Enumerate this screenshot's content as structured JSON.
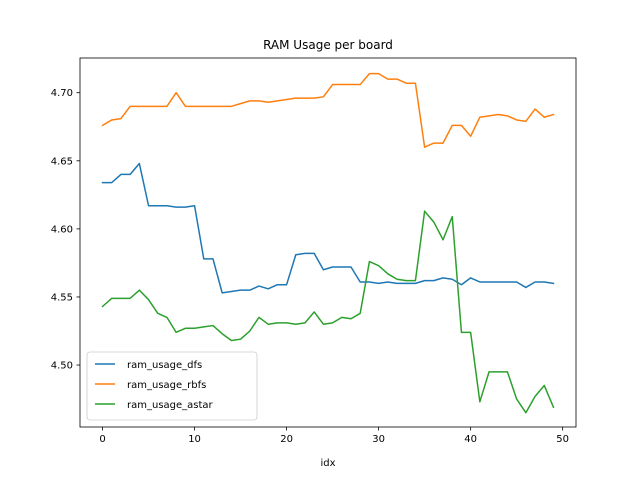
{
  "chart_data": {
    "type": "line",
    "title": "RAM Usage per board",
    "xlabel": "idx",
    "ylabel": "",
    "xlim": [
      -2.45,
      51.45
    ],
    "ylim": [
      4.4545,
      4.7255
    ],
    "xticks": [
      0,
      10,
      20,
      30,
      40,
      50
    ],
    "yticks": [
      4.5,
      4.55,
      4.6,
      4.65,
      4.7
    ],
    "ytick_labels": [
      "4.50",
      "4.55",
      "4.60",
      "4.65",
      "4.70"
    ],
    "grid": false,
    "legend_position": "lower-left",
    "x": [
      0,
      1,
      2,
      3,
      4,
      5,
      6,
      7,
      8,
      9,
      10,
      11,
      12,
      13,
      14,
      15,
      16,
      17,
      18,
      19,
      20,
      21,
      22,
      23,
      24,
      25,
      26,
      27,
      28,
      29,
      30,
      31,
      32,
      33,
      34,
      35,
      36,
      37,
      38,
      39,
      40,
      41,
      42,
      43,
      44,
      45,
      46,
      47,
      48,
      49
    ],
    "series": [
      {
        "name": "ram_usage_dfs",
        "color": "#1f77b4",
        "values": [
          4.634,
          4.634,
          4.64,
          4.64,
          4.648,
          4.617,
          4.617,
          4.617,
          4.616,
          4.616,
          4.617,
          4.578,
          4.578,
          4.553,
          4.554,
          4.555,
          4.555,
          4.558,
          4.556,
          4.559,
          4.559,
          4.581,
          4.582,
          4.582,
          4.57,
          4.572,
          4.572,
          4.572,
          4.561,
          4.561,
          4.56,
          4.561,
          4.56,
          4.56,
          4.56,
          4.562,
          4.562,
          4.564,
          4.563,
          4.559,
          4.564,
          4.561,
          4.561,
          4.561,
          4.561,
          4.561,
          4.557,
          4.561,
          4.561,
          4.56
        ]
      },
      {
        "name": "ram_usage_rbfs",
        "color": "#ff7f0e",
        "values": [
          4.676,
          4.68,
          4.681,
          4.69,
          4.69,
          4.69,
          4.69,
          4.69,
          4.7,
          4.69,
          4.69,
          4.69,
          4.69,
          4.69,
          4.69,
          4.692,
          4.694,
          4.694,
          4.693,
          4.694,
          4.695,
          4.696,
          4.696,
          4.696,
          4.697,
          4.706,
          4.706,
          4.706,
          4.706,
          4.714,
          4.714,
          4.71,
          4.71,
          4.707,
          4.707,
          4.66,
          4.663,
          4.663,
          4.676,
          4.676,
          4.668,
          4.682,
          4.683,
          4.684,
          4.683,
          4.68,
          4.679,
          4.688,
          4.682,
          4.684
        ]
      },
      {
        "name": "ram_usage_astar",
        "color": "#2ca02c",
        "values": [
          4.543,
          4.549,
          4.549,
          4.549,
          4.555,
          4.548,
          4.538,
          4.535,
          4.524,
          4.527,
          4.527,
          4.528,
          4.529,
          4.523,
          4.518,
          4.519,
          4.525,
          4.535,
          4.53,
          4.531,
          4.531,
          4.53,
          4.531,
          4.539,
          4.53,
          4.531,
          4.535,
          4.534,
          4.538,
          4.576,
          4.573,
          4.567,
          4.563,
          4.562,
          4.562,
          4.613,
          4.605,
          4.592,
          4.609,
          4.524,
          4.524,
          4.473,
          4.495,
          4.495,
          4.495,
          4.475,
          4.465,
          4.477,
          4.485,
          4.469
        ]
      }
    ]
  }
}
